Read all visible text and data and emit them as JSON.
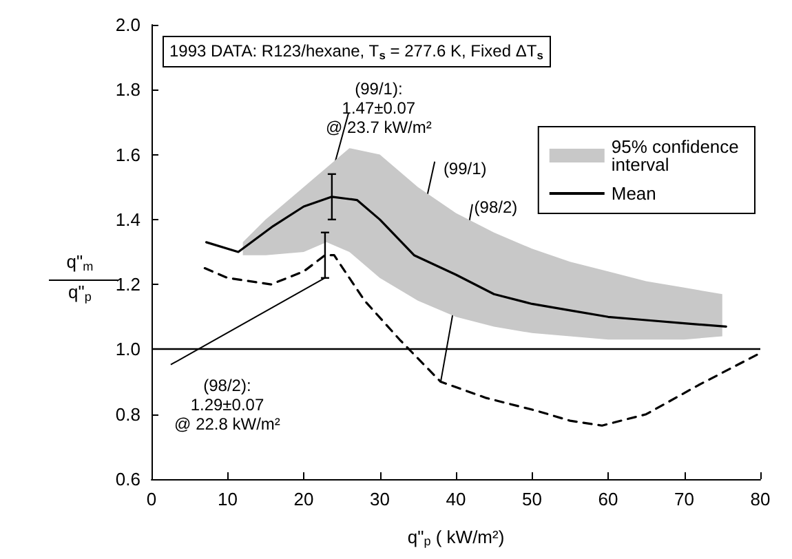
{
  "chart_data": {
    "type": "line",
    "title": "1993 DATA: R123/hexane, T$_{s}$ = 277.6 K, Fixed ΔT$_{s}$",
    "xlabel": "q\"$_{p}$ ( kW/m²)",
    "ylabel": "q\"$_{m}$\nq\"$_{p}$",
    "xlim": [
      0,
      80
    ],
    "xticks": [
      0,
      10,
      20,
      30,
      40,
      50,
      60,
      70,
      80
    ],
    "ylim": [
      0.6,
      2.0
    ],
    "yticks": [
      {
        "value": 0.6,
        "label": "0.6"
      },
      {
        "value": 0.8,
        "label": "0.8"
      },
      {
        "value": 1,
        "label": "1.0"
      },
      {
        "value": 1.2,
        "label": "1.2"
      },
      {
        "value": 1.4,
        "label": "1.4"
      },
      {
        "value": 1.6,
        "label": "1.6"
      },
      {
        "value": 1.8,
        "label": "1.8"
      },
      {
        "value": 2,
        "label": "2.0"
      }
    ],
    "grid": false,
    "legend": "top right",
    "marker": "none",
    "ref_lines": [
      {
        "axis": "y",
        "value": 1,
        "color": "#000000",
        "line_style": "solid"
      }
    ],
    "series": [
      {
        "name": "95% confidence interval",
        "type": "area",
        "color": "#c8c8c8",
        "x": [
          12,
          15,
          20,
          23,
          26,
          30,
          35,
          40,
          45,
          50,
          55,
          60,
          65,
          70,
          75
        ],
        "values": [
          null,
          null,
          null,
          null,
          null,
          null,
          null,
          null,
          null,
          null,
          null,
          null,
          null,
          null,
          null
        ],
        "lower": [
          1.29,
          1.29,
          1.3,
          1.33,
          1.3,
          1.22,
          1.15,
          1.1,
          1.07,
          1.05,
          1.04,
          1.03,
          1.03,
          1.03,
          1.04
        ],
        "upper": [
          1.33,
          1.4,
          1.5,
          1.56,
          1.62,
          1.6,
          1.5,
          1.42,
          1.36,
          1.31,
          1.27,
          1.24,
          1.21,
          1.19,
          1.17
        ]
      },
      {
        "name": "Mean",
        "color": "#000000",
        "line_style": "solid",
        "x": [
          7.2,
          11.4,
          16,
          20,
          23.7,
          27,
          30,
          34.5,
          40,
          45,
          50,
          55,
          60,
          65,
          70,
          75.5
        ],
        "values": [
          1.33,
          1.3,
          1.38,
          1.44,
          1.47,
          1.46,
          1.4,
          1.29,
          1.23,
          1.17,
          1.14,
          1.12,
          1.1,
          1.09,
          1.08,
          1.07
        ],
        "errors": [
          null,
          null,
          null,
          null,
          0.07,
          null,
          null,
          null,
          null,
          null,
          null,
          null,
          null,
          null,
          null,
          null
        ]
      },
      {
        "color": "#000000",
        "line_style": "dashed",
        "x": [
          7,
          10,
          15.7,
          20,
          22.8,
          24,
          28,
          32.6,
          38,
          44,
          50.7,
          55,
          59.2,
          65,
          71.9,
          79.7
        ],
        "values": [
          1.25,
          1.22,
          1.2,
          1.24,
          1.29,
          1.29,
          1.15,
          1.03,
          0.9,
          0.85,
          0.81,
          0.78,
          0.765,
          0.8,
          0.89,
          0.985
        ],
        "errors": [
          null,
          null,
          null,
          null,
          0.07,
          null,
          null,
          null,
          null,
          null,
          null,
          null,
          null,
          null,
          null,
          null
        ]
      }
    ],
    "annotations": [
      {
        "text": "(99/1):\n1.47±0.07\n@ 23.7 kW/m²",
        "x": 23.7,
        "y": 1.54
      },
      {
        "text": "(98/2):\n1.29±0.07\n@ 22.8 kW/m²",
        "x": 22.8,
        "y": 1.22
      },
      {
        "text": "(99/1)",
        "x": 34.5,
        "y": 1.29
      },
      {
        "text": "(98/2)",
        "x": 38,
        "y": 0.9
      }
    ]
  }
}
